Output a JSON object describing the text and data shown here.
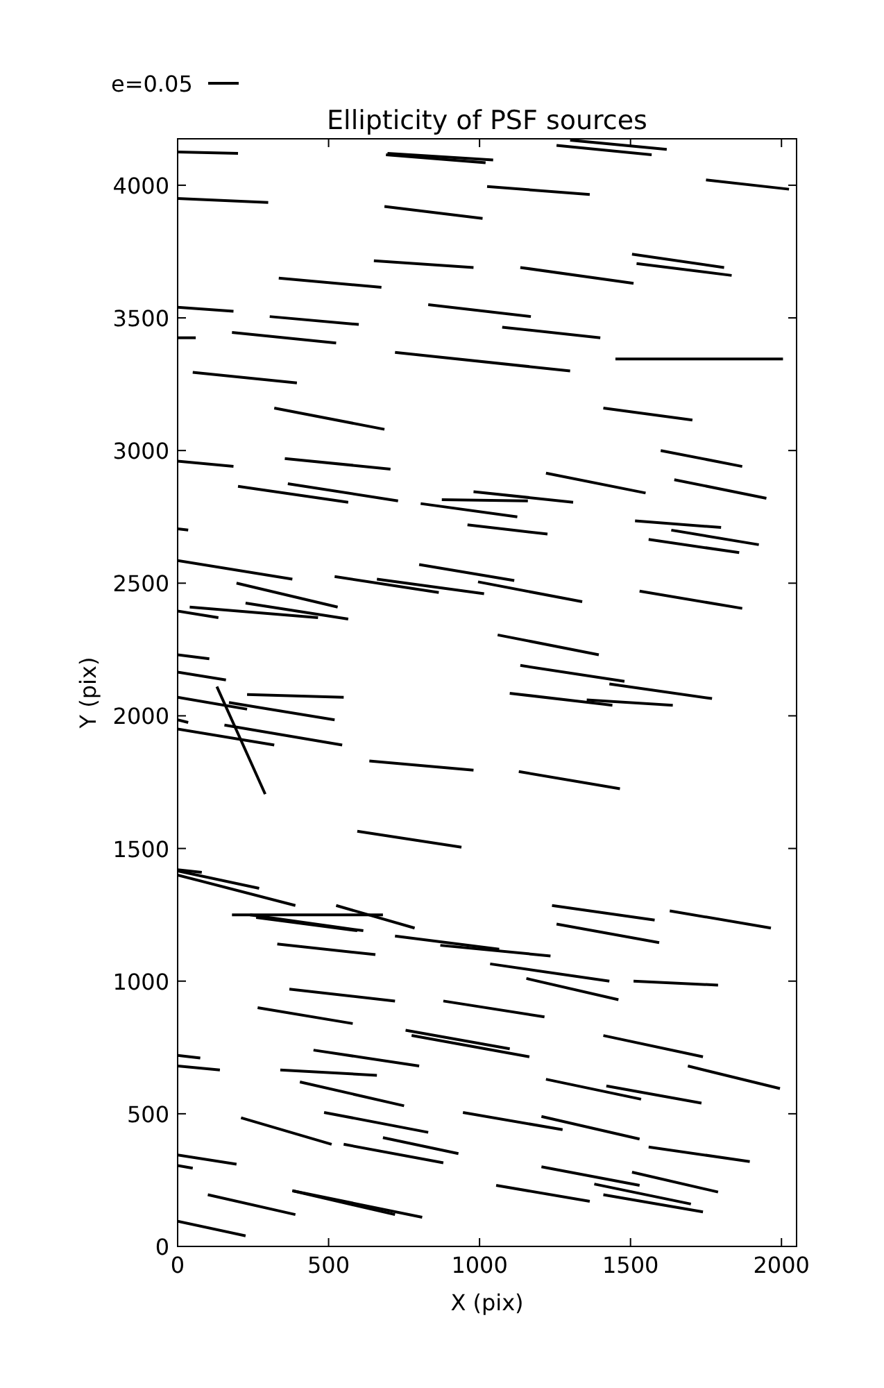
{
  "chart_data": {
    "type": "line",
    "title": "Ellipticity of PSF sources",
    "xlabel": "X (pix)",
    "ylabel": "Y (pix)",
    "annotations": [
      "e=0.05"
    ],
    "xlim": [
      0,
      2050
    ],
    "ylim": [
      0,
      4175
    ],
    "xticks": [
      0,
      500,
      1000,
      1500,
      2000
    ],
    "yticks": [
      0,
      500,
      1000,
      1500,
      2000,
      2500,
      3000,
      3500,
      4000
    ],
    "series": [
      {
        "color": "#000000",
        "x": [
          0,
          80
        ],
        "values": [
          1420,
          1410
        ]
      },
      {
        "color": "#000000",
        "x": [
          0,
          270
        ],
        "values": [
          1415,
          1350
        ]
      },
      {
        "color": "#000000",
        "x": [
          0,
          390
        ],
        "values": [
          1400,
          1285
        ]
      },
      {
        "color": "#000000",
        "x": [
          180,
          680
        ],
        "values": [
          1250,
          1250
        ]
      },
      {
        "color": "#000000",
        "x": [
          240,
          615
        ],
        "values": [
          1250,
          1190
        ]
      },
      {
        "color": "#000000",
        "x": [
          260,
          595
        ],
        "values": [
          1240,
          1190
        ]
      },
      {
        "color": "#000000",
        "x": [
          525,
          785
        ],
        "values": [
          1285,
          1200
        ]
      },
      {
        "color": "#000000",
        "x": [
          330,
          655
        ],
        "values": [
          1140,
          1100
        ]
      },
      {
        "color": "#000000",
        "x": [
          720,
          1065
        ],
        "values": [
          1170,
          1120
        ]
      },
      {
        "color": "#000000",
        "x": [
          870,
          1235
        ],
        "values": [
          1135,
          1095
        ]
      },
      {
        "color": "#000000",
        "x": [
          1035,
          1430
        ],
        "values": [
          1065,
          1000
        ]
      },
      {
        "color": "#000000",
        "x": [
          1155,
          1460
        ],
        "values": [
          1010,
          930
        ]
      },
      {
        "color": "#000000",
        "x": [
          1510,
          1790
        ],
        "values": [
          1000,
          985
        ]
      },
      {
        "color": "#000000",
        "x": [
          1240,
          1580
        ],
        "values": [
          1285,
          1230
        ]
      },
      {
        "color": "#000000",
        "x": [
          1255,
          1595
        ],
        "values": [
          1215,
          1145
        ]
      },
      {
        "color": "#000000",
        "x": [
          1630,
          1965
        ],
        "values": [
          1265,
          1200
        ]
      },
      {
        "color": "#000000",
        "x": [
          370,
          720
        ],
        "values": [
          970,
          925
        ]
      },
      {
        "color": "#000000",
        "x": [
          265,
          580
        ],
        "values": [
          900,
          840
        ]
      },
      {
        "color": "#000000",
        "x": [
          880,
          1215
        ],
        "values": [
          925,
          865
        ]
      },
      {
        "color": "#000000",
        "x": [
          755,
          1100
        ],
        "values": [
          815,
          745
        ]
      },
      {
        "color": "#000000",
        "x": [
          775,
          1165
        ],
        "values": [
          795,
          715
        ]
      },
      {
        "color": "#000000",
        "x": [
          1410,
          1740
        ],
        "values": [
          795,
          715
        ]
      },
      {
        "color": "#000000",
        "x": [
          1690,
          1995
        ],
        "values": [
          680,
          595
        ]
      },
      {
        "color": "#000000",
        "x": [
          0,
          75
        ],
        "values": [
          720,
          710
        ]
      },
      {
        "color": "#000000",
        "x": [
          0,
          140
        ],
        "values": [
          680,
          665
        ]
      },
      {
        "color": "#000000",
        "x": [
          450,
          800
        ],
        "values": [
          740,
          680
        ]
      },
      {
        "color": "#000000",
        "x": [
          340,
          660
        ],
        "values": [
          665,
          645
        ]
      },
      {
        "color": "#000000",
        "x": [
          405,
          750
        ],
        "values": [
          620,
          530
        ]
      },
      {
        "color": "#000000",
        "x": [
          1220,
          1535
        ],
        "values": [
          630,
          555
        ]
      },
      {
        "color": "#000000",
        "x": [
          1420,
          1735
        ],
        "values": [
          605,
          540
        ]
      },
      {
        "color": "#000000",
        "x": [
          945,
          1275
        ],
        "values": [
          505,
          440
        ]
      },
      {
        "color": "#000000",
        "x": [
          1205,
          1530
        ],
        "values": [
          490,
          405
        ]
      },
      {
        "color": "#000000",
        "x": [
          1560,
          1895
        ],
        "values": [
          375,
          320
        ]
      },
      {
        "color": "#000000",
        "x": [
          485,
          830
        ],
        "values": [
          505,
          430
        ]
      },
      {
        "color": "#000000",
        "x": [
          210,
          510
        ],
        "values": [
          485,
          385
        ]
      },
      {
        "color": "#000000",
        "x": [
          550,
          880
        ],
        "values": [
          385,
          315
        ]
      },
      {
        "color": "#000000",
        "x": [
          680,
          930
        ],
        "values": [
          410,
          350
        ]
      },
      {
        "color": "#000000",
        "x": [
          0,
          195
        ],
        "values": [
          345,
          310
        ]
      },
      {
        "color": "#000000",
        "x": [
          0,
          50
        ],
        "values": [
          305,
          295
        ]
      },
      {
        "color": "#000000",
        "x": [
          100,
          390
        ],
        "values": [
          195,
          120
        ]
      },
      {
        "color": "#000000",
        "x": [
          380,
          810
        ],
        "values": [
          210,
          110
        ]
      },
      {
        "color": "#000000",
        "x": [
          380,
          720
        ],
        "values": [
          210,
          120
        ]
      },
      {
        "color": "#000000",
        "x": [
          0,
          225
        ],
        "values": [
          95,
          40
        ]
      },
      {
        "color": "#000000",
        "x": [
          1055,
          1365
        ],
        "values": [
          230,
          170
        ]
      },
      {
        "color": "#000000",
        "x": [
          1205,
          1530
        ],
        "values": [
          300,
          230
        ]
      },
      {
        "color": "#000000",
        "x": [
          1505,
          1790
        ],
        "values": [
          280,
          205
        ]
      },
      {
        "color": "#000000",
        "x": [
          1380,
          1700
        ],
        "values": [
          235,
          160
        ]
      },
      {
        "color": "#000000",
        "x": [
          1410,
          1740
        ],
        "values": [
          195,
          130
        ]
      },
      {
        "color": "#000000",
        "x": [
          805,
          1125
        ],
        "values": [
          2800,
          2750
        ]
      },
      {
        "color": "#000000",
        "x": [
          960,
          1225
        ],
        "values": [
          2720,
          2685
        ]
      },
      {
        "color": "#000000",
        "x": [
          1515,
          1800
        ],
        "values": [
          2735,
          2710
        ]
      },
      {
        "color": "#000000",
        "x": [
          1635,
          1925
        ],
        "values": [
          2700,
          2645
        ]
      },
      {
        "color": "#000000",
        "x": [
          1560,
          1860
        ],
        "values": [
          2665,
          2615
        ]
      },
      {
        "color": "#000000",
        "x": [
          0,
          35
        ],
        "values": [
          2705,
          2700
        ]
      },
      {
        "color": "#000000",
        "x": [
          0,
          380
        ],
        "values": [
          2585,
          2515
        ]
      },
      {
        "color": "#000000",
        "x": [
          195,
          530
        ],
        "values": [
          2500,
          2410
        ]
      },
      {
        "color": "#000000",
        "x": [
          520,
          865
        ],
        "values": [
          2525,
          2465
        ]
      },
      {
        "color": "#000000",
        "x": [
          660,
          1015
        ],
        "values": [
          2515,
          2460
        ]
      },
      {
        "color": "#000000",
        "x": [
          800,
          1115
        ],
        "values": [
          2570,
          2510
        ]
      },
      {
        "color": "#000000",
        "x": [
          995,
          1340
        ],
        "values": [
          2505,
          2430
        ]
      },
      {
        "color": "#000000",
        "x": [
          1530,
          1870
        ],
        "values": [
          2470,
          2405
        ]
      },
      {
        "color": "#000000",
        "x": [
          40,
          465
        ],
        "values": [
          2410,
          2370
        ]
      },
      {
        "color": "#000000",
        "x": [
          225,
          565
        ],
        "values": [
          2425,
          2365
        ]
      },
      {
        "color": "#000000",
        "x": [
          0,
          135
        ],
        "values": [
          2395,
          2370
        ]
      },
      {
        "color": "#000000",
        "x": [
          1060,
          1395
        ],
        "values": [
          2305,
          2230
        ]
      },
      {
        "color": "#000000",
        "x": [
          0,
          105
        ],
        "values": [
          2230,
          2215
        ]
      },
      {
        "color": "#000000",
        "x": [
          0,
          160
        ],
        "values": [
          2165,
          2135
        ]
      },
      {
        "color": "#000000",
        "x": [
          1135,
          1480
        ],
        "values": [
          2190,
          2130
        ]
      },
      {
        "color": "#000000",
        "x": [
          1430,
          1770
        ],
        "values": [
          2120,
          2065
        ]
      },
      {
        "color": "#000000",
        "x": [
          1100,
          1440
        ],
        "values": [
          2085,
          2040
        ]
      },
      {
        "color": "#000000",
        "x": [
          1355,
          1640
        ],
        "values": [
          2060,
          2040
        ]
      },
      {
        "color": "#000000",
        "x": [
          0,
          230
        ],
        "values": [
          2070,
          2025
        ]
      },
      {
        "color": "#000000",
        "x": [
          130,
          290
        ],
        "values": [
          2110,
          1705
        ]
      },
      {
        "color": "#000000",
        "x": [
          230,
          550
        ],
        "values": [
          2080,
          2070
        ]
      },
      {
        "color": "#000000",
        "x": [
          170,
          520
        ],
        "values": [
          2050,
          1985
        ]
      },
      {
        "color": "#000000",
        "x": [
          0,
          35
        ],
        "values": [
          1985,
          1975
        ]
      },
      {
        "color": "#000000",
        "x": [
          0,
          320
        ],
        "values": [
          1950,
          1890
        ]
      },
      {
        "color": "#000000",
        "x": [
          155,
          545
        ],
        "values": [
          1965,
          1890
        ]
      },
      {
        "color": "#000000",
        "x": [
          635,
          980
        ],
        "values": [
          1830,
          1795
        ]
      },
      {
        "color": "#000000",
        "x": [
          1130,
          1465
        ],
        "values": [
          1790,
          1725
        ]
      },
      {
        "color": "#000000",
        "x": [
          595,
          940
        ],
        "values": [
          1565,
          1505
        ]
      },
      {
        "color": "#000000",
        "x": [
          0,
          200
        ],
        "values": [
          4125,
          4120
        ]
      },
      {
        "color": "#000000",
        "x": [
          695,
          1045
        ],
        "values": [
          4120,
          4095
        ]
      },
      {
        "color": "#000000",
        "x": [
          690,
          1020
        ],
        "values": [
          4115,
          4085
        ]
      },
      {
        "color": "#000000",
        "x": [
          1300,
          1620
        ],
        "values": [
          4170,
          4135
        ]
      },
      {
        "color": "#000000",
        "x": [
          1255,
          1570
        ],
        "values": [
          4150,
          4115
        ]
      },
      {
        "color": "#000000",
        "x": [
          1750,
          2025
        ],
        "values": [
          4020,
          3985
        ]
      },
      {
        "color": "#000000",
        "x": [
          0,
          300
        ],
        "values": [
          3950,
          3935
        ]
      },
      {
        "color": "#000000",
        "x": [
          1025,
          1365
        ],
        "values": [
          3995,
          3965
        ]
      },
      {
        "color": "#000000",
        "x": [
          685,
          1010
        ],
        "values": [
          3920,
          3875
        ]
      },
      {
        "color": "#000000",
        "x": [
          650,
          980
        ],
        "values": [
          3715,
          3690
        ]
      },
      {
        "color": "#000000",
        "x": [
          335,
          675
        ],
        "values": [
          3650,
          3615
        ]
      },
      {
        "color": "#000000",
        "x": [
          1135,
          1510
        ],
        "values": [
          3690,
          3630
        ]
      },
      {
        "color": "#000000",
        "x": [
          1505,
          1810
        ],
        "values": [
          3740,
          3690
        ]
      },
      {
        "color": "#000000",
        "x": [
          1520,
          1835
        ],
        "values": [
          3705,
          3660
        ]
      },
      {
        "color": "#000000",
        "x": [
          0,
          185
        ],
        "values": [
          3540,
          3525
        ]
      },
      {
        "color": "#000000",
        "x": [
          305,
          600
        ],
        "values": [
          3505,
          3475
        ]
      },
      {
        "color": "#000000",
        "x": [
          830,
          1170
        ],
        "values": [
          3550,
          3505
        ]
      },
      {
        "color": "#000000",
        "x": [
          180,
          525
        ],
        "values": [
          3445,
          3405
        ]
      },
      {
        "color": "#000000",
        "x": [
          0,
          60
        ],
        "values": [
          3425,
          3425
        ]
      },
      {
        "color": "#000000",
        "x": [
          1075,
          1400
        ],
        "values": [
          3465,
          3425
        ]
      },
      {
        "color": "#000000",
        "x": [
          720,
          1300
        ],
        "values": [
          3370,
          3300
        ]
      },
      {
        "color": "#000000",
        "x": [
          1450,
          2005
        ],
        "values": [
          3345,
          3345
        ]
      },
      {
        "color": "#000000",
        "x": [
          50,
          395
        ],
        "values": [
          3295,
          3255
        ]
      },
      {
        "color": "#000000",
        "x": [
          320,
          685
        ],
        "values": [
          3160,
          3080
        ]
      },
      {
        "color": "#000000",
        "x": [
          1410,
          1705
        ],
        "values": [
          3160,
          3115
        ]
      },
      {
        "color": "#000000",
        "x": [
          0,
          185
        ],
        "values": [
          2960,
          2940
        ]
      },
      {
        "color": "#000000",
        "x": [
          355,
          705
        ],
        "values": [
          2970,
          2930
        ]
      },
      {
        "color": "#000000",
        "x": [
          1600,
          1870
        ],
        "values": [
          3000,
          2940
        ]
      },
      {
        "color": "#000000",
        "x": [
          200,
          565
        ],
        "values": [
          2865,
          2805
        ]
      },
      {
        "color": "#000000",
        "x": [
          365,
          730
        ],
        "values": [
          2875,
          2810
        ]
      },
      {
        "color": "#000000",
        "x": [
          1220,
          1550
        ],
        "values": [
          2915,
          2840
        ]
      },
      {
        "color": "#000000",
        "x": [
          1645,
          1950
        ],
        "values": [
          2890,
          2820
        ]
      },
      {
        "color": "#000000",
        "x": [
          875,
          1160
        ],
        "values": [
          2815,
          2810
        ]
      },
      {
        "color": "#000000",
        "x": [
          980,
          1310
        ],
        "values": [
          2845,
          2805
        ]
      }
    ]
  }
}
